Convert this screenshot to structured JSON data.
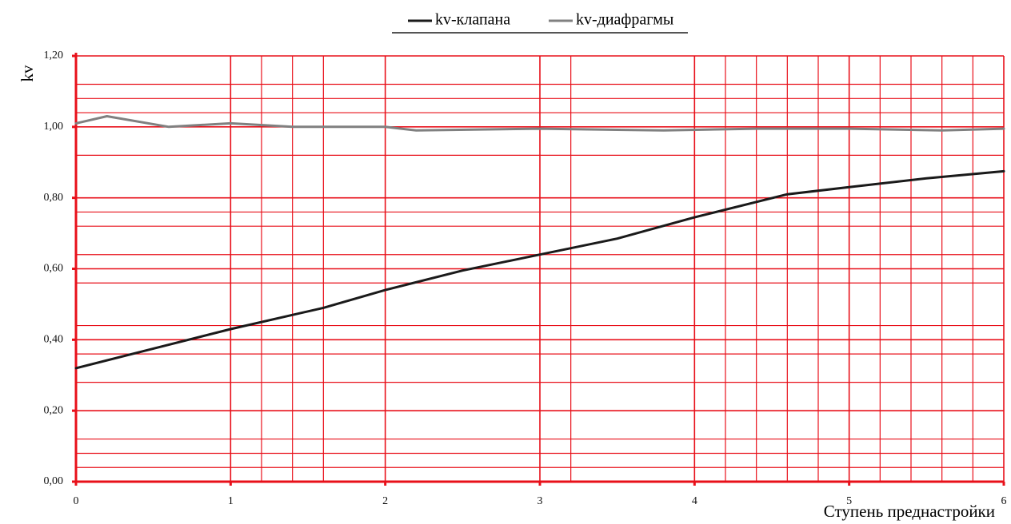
{
  "chart_data": {
    "type": "line",
    "xlabel": "Ступень преднастройки",
    "ylabel": "kv",
    "xlim": [
      0,
      6
    ],
    "ylim": [
      0,
      1.2
    ],
    "x_ticks": [
      "0",
      "1",
      "2",
      "3",
      "4",
      "5",
      "6"
    ],
    "y_ticks": [
      "0,00",
      "0,20",
      "0,40",
      "0,60",
      "0,80",
      "1,00",
      "1,20"
    ],
    "grid": true,
    "grid_minor_x": [
      1.2,
      1.4,
      1.6,
      3.2,
      4.2,
      4.4,
      4.6,
      4.8,
      5.2,
      5.4,
      5.6,
      5.8
    ],
    "grid_minor_y": [
      0.04,
      0.08,
      0.12,
      0.28,
      0.36,
      0.44,
      0.56,
      0.64,
      0.72,
      0.76,
      0.92,
      1.04,
      1.08,
      1.12
    ],
    "legend_position": "top-center",
    "colors": {
      "grid": "#e8101a",
      "axes": "#e8101a"
    },
    "series": [
      {
        "name": "kv-клапана",
        "color": "#1a1a1a",
        "x": [
          0,
          0.5,
          1,
          1.6,
          2,
          2.5,
          3,
          3.5,
          4,
          4.6,
          5,
          5.5,
          6
        ],
        "y": [
          0.32,
          0.375,
          0.43,
          0.49,
          0.54,
          0.595,
          0.64,
          0.685,
          0.745,
          0.81,
          0.83,
          0.855,
          0.875
        ]
      },
      {
        "name": "kv-диафрагмы",
        "color": "#808080",
        "x": [
          0,
          0.2,
          0.6,
          1,
          1.4,
          2,
          2.2,
          3,
          3.8,
          4.4,
          5,
          5.6,
          6
        ],
        "y": [
          1.01,
          1.03,
          1.0,
          1.01,
          1.0,
          1.0,
          0.99,
          0.995,
          0.99,
          0.995,
          0.995,
          0.99,
          0.995
        ]
      }
    ]
  }
}
